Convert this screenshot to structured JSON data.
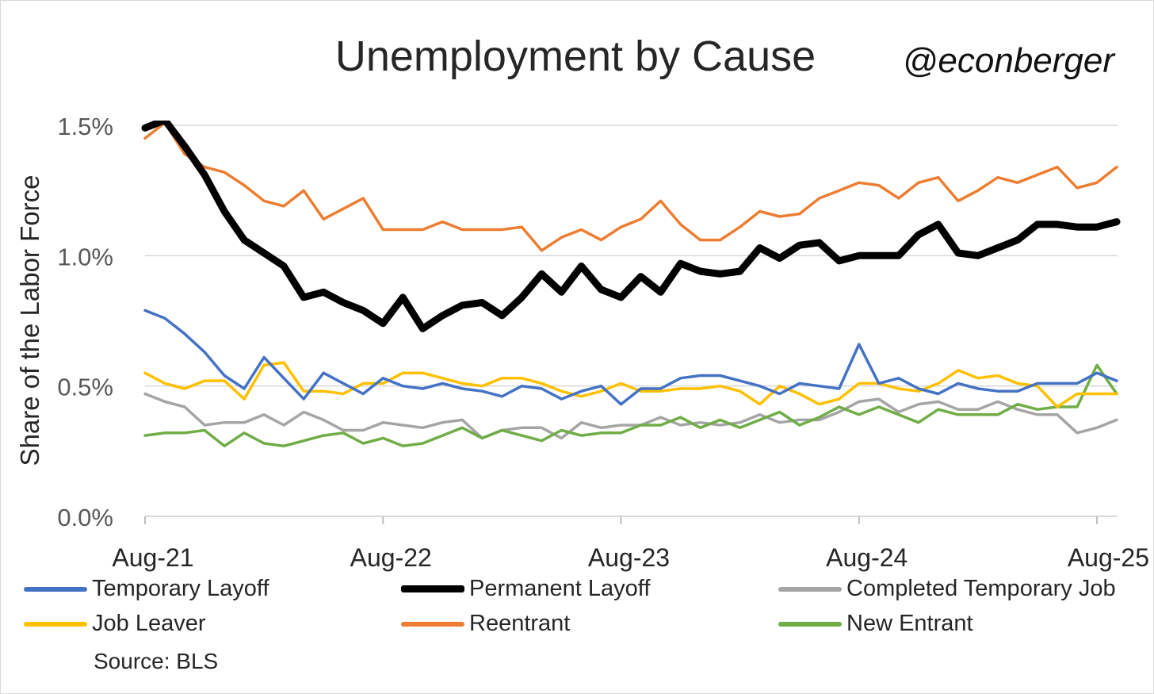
{
  "title": "Unemployment by Cause",
  "handle": "@econberger",
  "source": "Source: BLS",
  "chart_data": {
    "type": "line",
    "ylabel": "Share of the Labor Force",
    "xlabel": "",
    "ylim": [
      0,
      1.5
    ],
    "yticks": [
      "0.0%",
      "0.5%",
      "1.0%",
      "1.5%"
    ],
    "ytick_values": [
      0,
      0.5,
      1.0,
      1.5
    ],
    "xtick_labels": [
      "Aug-21",
      "Aug-22",
      "Aug-23",
      "Aug-24",
      "Aug-25"
    ],
    "xtick_index": [
      0,
      12,
      24,
      36,
      48
    ],
    "grid": true,
    "series": [
      {
        "name": "Temporary Layoff",
        "color": "#4472C4",
        "width": 3.5,
        "values": [
          0.79,
          0.76,
          0.7,
          0.63,
          0.54,
          0.49,
          0.61,
          0.53,
          0.45,
          0.55,
          0.51,
          0.47,
          0.53,
          0.5,
          0.49,
          0.51,
          0.49,
          0.48,
          0.46,
          0.5,
          0.49,
          0.45,
          0.48,
          0.5,
          0.43,
          0.49,
          0.49,
          0.53,
          0.54,
          0.54,
          0.52,
          0.5,
          0.47,
          0.51,
          0.5,
          0.49,
          0.66,
          0.51,
          0.53,
          0.49,
          0.47,
          0.51,
          0.49,
          0.48,
          0.48,
          0.51,
          0.51,
          0.51,
          0.55,
          0.52
        ]
      },
      {
        "name": "Permanent Layoff",
        "color": "#000000",
        "width": 9,
        "values": [
          1.49,
          1.52,
          1.42,
          1.31,
          1.17,
          1.06,
          1.01,
          0.96,
          0.84,
          0.86,
          0.82,
          0.79,
          0.74,
          0.84,
          0.72,
          0.77,
          0.81,
          0.82,
          0.77,
          0.84,
          0.93,
          0.86,
          0.96,
          0.87,
          0.84,
          0.92,
          0.86,
          0.97,
          0.94,
          0.93,
          0.94,
          1.03,
          0.99,
          1.04,
          1.05,
          0.98,
          1.0,
          1.0,
          1.0,
          1.08,
          1.12,
          1.01,
          1.0,
          1.03,
          1.06,
          1.12,
          1.12,
          1.11,
          1.11,
          1.13
        ]
      },
      {
        "name": "Completed Temporary Job",
        "color": "#A5A5A5",
        "width": 3.5,
        "values": [
          0.47,
          0.44,
          0.42,
          0.35,
          0.36,
          0.36,
          0.39,
          0.35,
          0.4,
          0.37,
          0.33,
          0.33,
          0.36,
          0.35,
          0.34,
          0.36,
          0.37,
          0.3,
          0.33,
          0.34,
          0.34,
          0.3,
          0.36,
          0.34,
          0.35,
          0.35,
          0.38,
          0.35,
          0.36,
          0.35,
          0.36,
          0.39,
          0.36,
          0.37,
          0.37,
          0.4,
          0.44,
          0.45,
          0.4,
          0.43,
          0.44,
          0.41,
          0.41,
          0.44,
          0.41,
          0.39,
          0.39,
          0.32,
          0.34,
          0.37
        ]
      },
      {
        "name": "Job Leaver",
        "color": "#FFC000",
        "width": 3.5,
        "values": [
          0.55,
          0.51,
          0.49,
          0.52,
          0.52,
          0.45,
          0.58,
          0.59,
          0.48,
          0.48,
          0.47,
          0.51,
          0.51,
          0.55,
          0.55,
          0.53,
          0.51,
          0.5,
          0.53,
          0.53,
          0.51,
          0.48,
          0.46,
          0.48,
          0.51,
          0.48,
          0.48,
          0.49,
          0.49,
          0.5,
          0.48,
          0.43,
          0.5,
          0.47,
          0.43,
          0.45,
          0.51,
          0.51,
          0.49,
          0.48,
          0.51,
          0.56,
          0.53,
          0.54,
          0.51,
          0.5,
          0.42,
          0.47,
          0.47,
          0.47
        ]
      },
      {
        "name": "Reentrant",
        "color": "#ED7D31",
        "width": 3.5,
        "values": [
          1.45,
          1.51,
          1.39,
          1.34,
          1.32,
          1.27,
          1.21,
          1.19,
          1.25,
          1.14,
          1.18,
          1.22,
          1.1,
          1.1,
          1.1,
          1.13,
          1.1,
          1.1,
          1.1,
          1.11,
          1.02,
          1.07,
          1.1,
          1.06,
          1.11,
          1.14,
          1.21,
          1.12,
          1.06,
          1.06,
          1.11,
          1.17,
          1.15,
          1.16,
          1.22,
          1.25,
          1.28,
          1.27,
          1.22,
          1.28,
          1.3,
          1.21,
          1.25,
          1.3,
          1.28,
          1.31,
          1.34,
          1.26,
          1.28,
          1.34
        ]
      },
      {
        "name": "New Entrant",
        "color": "#70AD47",
        "width": 3.5,
        "values": [
          0.31,
          0.32,
          0.32,
          0.33,
          0.27,
          0.32,
          0.28,
          0.27,
          0.29,
          0.31,
          0.32,
          0.28,
          0.3,
          0.27,
          0.28,
          0.31,
          0.34,
          0.3,
          0.33,
          0.31,
          0.29,
          0.33,
          0.31,
          0.32,
          0.32,
          0.35,
          0.35,
          0.38,
          0.34,
          0.37,
          0.34,
          0.37,
          0.4,
          0.35,
          0.38,
          0.42,
          0.39,
          0.42,
          0.39,
          0.36,
          0.41,
          0.39,
          0.39,
          0.39,
          0.43,
          0.41,
          0.42,
          0.42,
          0.58,
          0.47
        ]
      }
    ]
  },
  "legend": {
    "items": [
      {
        "label": "Temporary Layoff",
        "color": "#4472C4"
      },
      {
        "label": "Permanent Layoff",
        "color": "#000000"
      },
      {
        "label": "Completed Temporary Job",
        "color": "#A5A5A5"
      },
      {
        "label": "Job Leaver",
        "color": "#FFC000"
      },
      {
        "label": "Reentrant",
        "color": "#ED7D31"
      },
      {
        "label": "New Entrant",
        "color": "#70AD47"
      }
    ]
  }
}
